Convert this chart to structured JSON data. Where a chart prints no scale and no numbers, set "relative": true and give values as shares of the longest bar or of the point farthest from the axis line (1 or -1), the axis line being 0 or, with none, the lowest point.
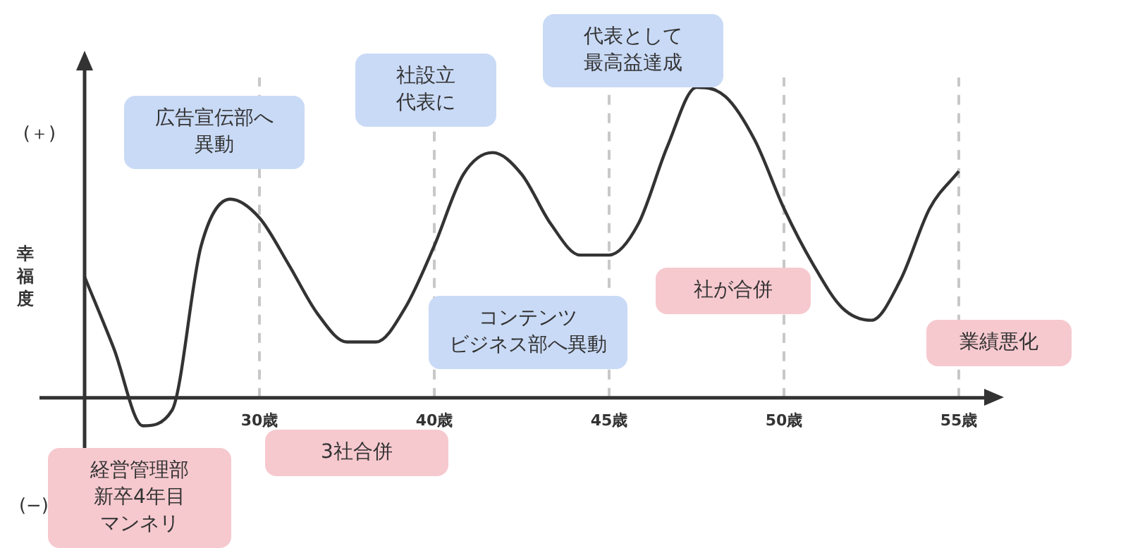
{
  "chart_data": {
    "type": "line",
    "relative": true,
    "ylabel": "幸福度",
    "categories": [
      null,
      null,
      null,
      null,
      null,
      null,
      "30歳",
      null,
      null,
      null,
      null,
      null,
      "40歳",
      null,
      null,
      null,
      null,
      null,
      "45歳",
      null,
      null,
      null,
      null,
      null,
      "50歳",
      null,
      null,
      null,
      null,
      null,
      "55歳"
    ],
    "series": [
      {
        "color": "#333333",
        "values": [
          0.39,
          0.16,
          -0.09,
          -0.04,
          0.49,
          0.64,
          0.58,
          0.43,
          0.27,
          0.18,
          0.18,
          0.29,
          0.49,
          0.72,
          0.79,
          0.72,
          0.56,
          0.46,
          0.46,
          0.56,
          0.81,
          1,
          0.97,
          0.83,
          0.61,
          0.43,
          0.29,
          0.25,
          0.38,
          0.61,
          0.73
        ]
      }
    ],
    "grid": "x",
    "marker": "none",
    "annotations": [
      "(＋)",
      "(−)",
      "広告宣伝部へ異動",
      "社設立代表に",
      "代表として最高益達成",
      "社が合併",
      "業績悪化",
      "コンテンツビジネス部へ異動",
      "3社合併",
      "経営管理部新卒4年目マンネリ"
    ]
  }
}
